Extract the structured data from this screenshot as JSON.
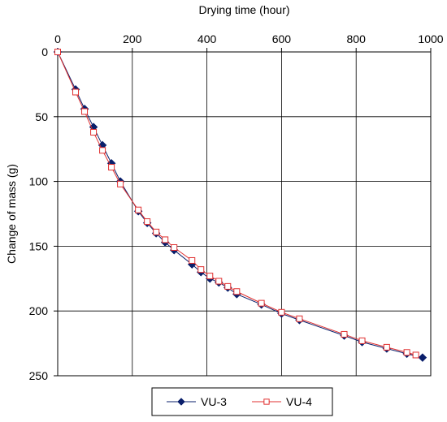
{
  "chart_data": {
    "type": "line",
    "xlabel": "Drying time (hour)",
    "ylabel": "Change of mass (g)",
    "xlim": [
      0,
      1000
    ],
    "ylim": [
      0,
      250
    ],
    "y_axis_inverted": true,
    "x_axis_position": "top",
    "xticks": [
      0,
      200,
      400,
      600,
      800,
      1000
    ],
    "yticks": [
      0,
      50,
      100,
      150,
      200,
      250
    ],
    "xtick_labels": [
      "0",
      "200",
      "400",
      "600",
      "800",
      "1000"
    ],
    "ytick_labels": [
      "0",
      "50",
      "100",
      "150",
      "200",
      "250"
    ],
    "grid": true,
    "legend_position": "bottom-center",
    "series": [
      {
        "name": "VU-3",
        "color": "#0a1f6b",
        "marker": "diamond-filled",
        "x": [
          0,
          48,
          72,
          96,
          120,
          144,
          168,
          216,
          240,
          264,
          288,
          312,
          360,
          384,
          408,
          432,
          456,
          480,
          546,
          600,
          648,
          768,
          816,
          882,
          936,
          978
        ],
        "y": [
          0,
          29,
          44,
          58,
          72,
          86,
          100,
          123,
          132,
          140,
          147,
          153,
          164,
          170,
          175,
          178,
          182,
          187,
          195,
          202,
          207,
          219,
          224,
          229,
          233,
          236
        ]
      },
      {
        "name": "VU-4",
        "color": "#e03030",
        "marker": "square-open",
        "x": [
          0,
          48,
          72,
          96,
          120,
          144,
          168,
          216,
          240,
          264,
          288,
          312,
          360,
          384,
          408,
          432,
          456,
          480,
          546,
          600,
          648,
          768,
          816,
          882,
          936,
          960
        ],
        "y": [
          0,
          31,
          46,
          62,
          76,
          89,
          102,
          122,
          131,
          139,
          145,
          151,
          161,
          168,
          173,
          177,
          181,
          185,
          194,
          201,
          206,
          218,
          223,
          228,
          232,
          234
        ]
      }
    ]
  }
}
